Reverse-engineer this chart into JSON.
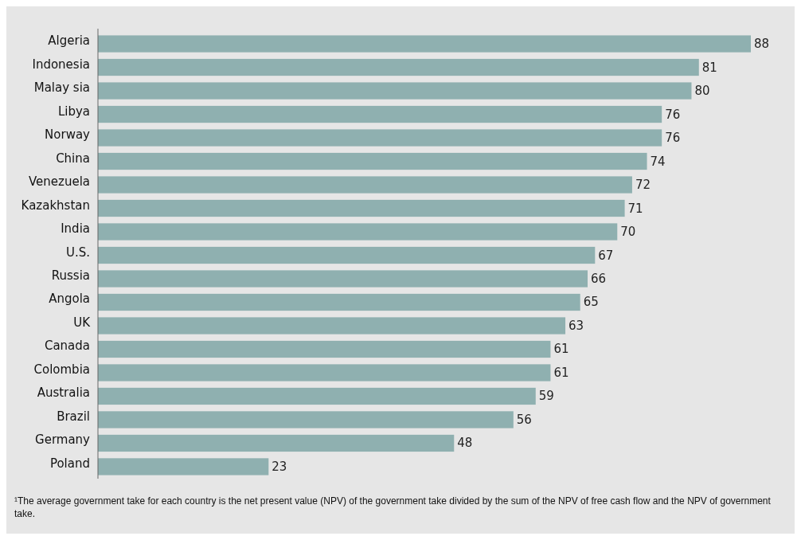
{
  "chart_data": {
    "type": "bar",
    "orientation": "horizontal",
    "categories": [
      "Algeria",
      "Indonesia",
      "Malay sia",
      "Libya",
      "Norway",
      "China",
      "Venezuela",
      "Kazakhstan",
      "India",
      "U.S.",
      "Russia",
      "Angola",
      "UK",
      "Canada",
      "Colombia",
      "Australia",
      "Brazil",
      "Germany",
      "Poland"
    ],
    "values": [
      88,
      81,
      80,
      76,
      76,
      74,
      72,
      71,
      70,
      67,
      66,
      65,
      63,
      61,
      61,
      59,
      56,
      48,
      23
    ],
    "color": "#8fb0b0",
    "data_labels": true,
    "tick_labels": "y",
    "annotations": [
      "¹The average government take for each country is the net present value (NPV) of the government take divided by the sum of the NPV of free cash flow and the NPV of government take."
    ]
  }
}
